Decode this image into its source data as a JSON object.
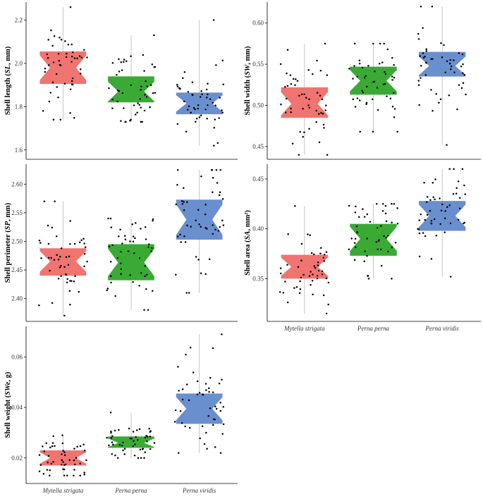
{
  "chart_data": [
    {
      "type": "box",
      "id": "sl",
      "ylabel": "Shell length (SL, mm)",
      "ylabel_parts": {
        "prefix": "Shell length (",
        "sym": "SL",
        "suffix": ", mm)"
      },
      "categories": [
        "Mytella strigata",
        "Perna perna",
        "Perna viridis"
      ],
      "ylim": [
        1.57,
        2.27
      ],
      "yticks": [
        1.6,
        1.8,
        2.0,
        2.2
      ],
      "ytick_labels": [
        "1.6",
        "1.8",
        "2.0",
        "2.2"
      ],
      "boxes": [
        {
          "name": "Mytella strigata",
          "q1": 1.905,
          "median": 1.98,
          "q3": 2.055,
          "whisker_low": 1.74,
          "whisker_high": 2.26
        },
        {
          "name": "Perna perna",
          "q1": 1.82,
          "median": 1.87,
          "q3": 1.94,
          "whisker_low": 1.73,
          "whisker_high": 2.13
        },
        {
          "name": "Perna viridis",
          "q1": 1.765,
          "median": 1.815,
          "q3": 1.865,
          "whisker_low": 1.62,
          "whisker_high": 2.2
        }
      ]
    },
    {
      "type": "box",
      "id": "sw",
      "ylabel": "Shell width (SW, mm)",
      "ylabel_parts": {
        "prefix": "Shell width (",
        "sym": "SW",
        "suffix": ", mm)"
      },
      "categories": [
        "Mytella strigata",
        "Perna perna",
        "Perna viridis"
      ],
      "ylim": [
        0.438,
        0.622
      ],
      "yticks": [
        0.45,
        0.5,
        0.55,
        0.6
      ],
      "ytick_labels": [
        "0.45",
        "0.50",
        "0.55",
        "0.60"
      ],
      "boxes": [
        {
          "name": "Mytella strigata",
          "q1": 0.485,
          "median": 0.502,
          "q3": 0.522,
          "whisker_low": 0.44,
          "whisker_high": 0.575
        },
        {
          "name": "Perna perna",
          "q1": 0.513,
          "median": 0.53,
          "q3": 0.547,
          "whisker_low": 0.468,
          "whisker_high": 0.575
        },
        {
          "name": "Perna viridis",
          "q1": 0.535,
          "median": 0.548,
          "q3": 0.565,
          "whisker_low": 0.452,
          "whisker_high": 0.62
        }
      ]
    },
    {
      "type": "box",
      "id": "sp",
      "ylabel": "Shell perimeter (SP, mm)",
      "ylabel_parts": {
        "prefix": "Shell perimeter (",
        "sym": "SP",
        "suffix": ", mm)"
      },
      "categories": [
        "Mytella strigata",
        "Perna perna",
        "Perna viridis"
      ],
      "ylim": [
        2.365,
        2.63
      ],
      "yticks": [
        2.4,
        2.45,
        2.5,
        2.55,
        2.6
      ],
      "ytick_labels": [
        "2.40",
        "2.45",
        "2.50",
        "2.55",
        "2.60"
      ],
      "boxes": [
        {
          "name": "Mytella strigata",
          "q1": 2.44,
          "median": 2.465,
          "q3": 2.488,
          "whisker_low": 2.37,
          "whisker_high": 2.57
        },
        {
          "name": "Perna perna",
          "q1": 2.432,
          "median": 2.463,
          "q3": 2.495,
          "whisker_low": 2.38,
          "whisker_high": 2.54
        },
        {
          "name": "Perna viridis",
          "q1": 2.503,
          "median": 2.538,
          "q3": 2.573,
          "whisker_low": 2.41,
          "whisker_high": 2.625
        }
      ]
    },
    {
      "type": "box",
      "id": "sa",
      "ylabel": "Shell area (SA, mm²)",
      "ylabel_parts": {
        "prefix": "Shell area (",
        "sym": "SA",
        "suffix": ", mm²)"
      },
      "categories": [
        "Mytella strigata",
        "Perna perna",
        "Perna viridis"
      ],
      "ylim": [
        0.31,
        0.462
      ],
      "yticks": [
        0.35,
        0.4,
        0.45
      ],
      "ytick_labels": [
        "0.35",
        "0.40",
        "0.45"
      ],
      "x_tick_labels_visible": true,
      "boxes": [
        {
          "name": "Mytella strigata",
          "q1": 0.35,
          "median": 0.362,
          "q3": 0.374,
          "whisker_low": 0.315,
          "whisker_high": 0.423
        },
        {
          "name": "Perna perna",
          "q1": 0.373,
          "median": 0.39,
          "q3": 0.405,
          "whisker_low": 0.35,
          "whisker_high": 0.425
        },
        {
          "name": "Perna viridis",
          "q1": 0.398,
          "median": 0.413,
          "q3": 0.428,
          "whisker_low": 0.352,
          "whisker_high": 0.46
        }
      ]
    },
    {
      "type": "box",
      "id": "swe",
      "ylabel": "Shell weight (SWe, g)",
      "ylabel_parts": {
        "prefix": "Shell weight (",
        "sym": "SWe",
        "suffix": ", g)"
      },
      "categories": [
        "Mytella strigata",
        "Perna perna",
        "Perna viridis"
      ],
      "ylim": [
        0.011,
        0.071
      ],
      "yticks": [
        0.02,
        0.04,
        0.06
      ],
      "ytick_labels": [
        "0.02",
        "0.04",
        "0.06"
      ],
      "x_tick_labels_visible": true,
      "boxes": [
        {
          "name": "Mytella strigata",
          "q1": 0.017,
          "median": 0.02,
          "q3": 0.023,
          "whisker_low": 0.013,
          "whisker_high": 0.029
        },
        {
          "name": "Perna perna",
          "q1": 0.024,
          "median": 0.026,
          "q3": 0.0285,
          "whisker_low": 0.02,
          "whisker_high": 0.038
        },
        {
          "name": "Perna viridis",
          "q1": 0.0335,
          "median": 0.0395,
          "q3": 0.0455,
          "whisker_low": 0.022,
          "whisker_high": 0.069
        }
      ]
    }
  ],
  "colors": {
    "Mytella strigata": "#f07470",
    "Perna perna": "#3aaa35",
    "Perna viridis": "#6a8fce",
    "axis": "#000000",
    "points": "#000000"
  },
  "points_per_group": 50
}
